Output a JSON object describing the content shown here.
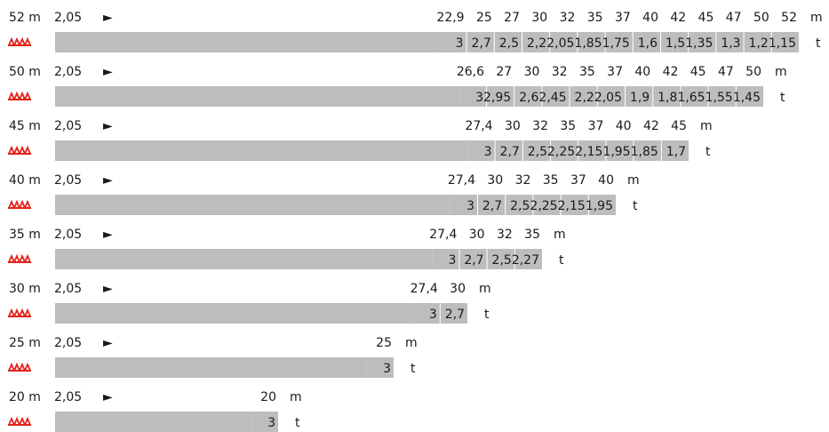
{
  "chart_data": {
    "type": "table",
    "start_radius": "2,05",
    "radius_unit": "m",
    "load_unit": "t",
    "boom_marker": "►",
    "accent_color": "#e2231a",
    "bar_color": "#bdbdbd",
    "cell_border": "#ffffff",
    "rows": [
      {
        "jib": "52 m",
        "radii": [
          "22,9",
          "25",
          "27",
          "30",
          "32",
          "35",
          "37",
          "40",
          "42",
          "45",
          "47",
          "50",
          "52"
        ],
        "loads": [
          "3",
          "2,7",
          "2,5",
          "2,2",
          "2,05",
          "1,85",
          "1,75",
          "1,6",
          "1,5",
          "1,35",
          "1,3",
          "1,2",
          "1,15"
        ]
      },
      {
        "jib": "50 m",
        "radii": [
          "26,6",
          "27",
          "30",
          "32",
          "35",
          "37",
          "40",
          "42",
          "45",
          "47",
          "50"
        ],
        "loads": [
          "3",
          "2,95",
          "2,6",
          "2,45",
          "2,2",
          "2,05",
          "1,9",
          "1,8",
          "1,65",
          "1,55",
          "1,45"
        ]
      },
      {
        "jib": "45 m",
        "radii": [
          "27,4",
          "30",
          "32",
          "35",
          "37",
          "40",
          "42",
          "45"
        ],
        "loads": [
          "3",
          "2,7",
          "2,5",
          "2,25",
          "2,15",
          "1,95",
          "1,85",
          "1,7"
        ]
      },
      {
        "jib": "40 m",
        "radii": [
          "27,4",
          "30",
          "32",
          "35",
          "37",
          "40"
        ],
        "loads": [
          "3",
          "2,7",
          "2,5",
          "2,25",
          "2,15",
          "1,95"
        ]
      },
      {
        "jib": "35 m",
        "radii": [
          "27,4",
          "30",
          "32",
          "35"
        ],
        "loads": [
          "3",
          "2,7",
          "2,5",
          "2,27"
        ]
      },
      {
        "jib": "30 m",
        "radii": [
          "27,4",
          "30"
        ],
        "loads": [
          "3",
          "2,7"
        ]
      },
      {
        "jib": "25 m",
        "radii": [
          "25"
        ],
        "loads": [
          "3"
        ]
      },
      {
        "jib": "20 m",
        "radii": [
          "20"
        ],
        "loads": [
          "3"
        ]
      }
    ]
  }
}
